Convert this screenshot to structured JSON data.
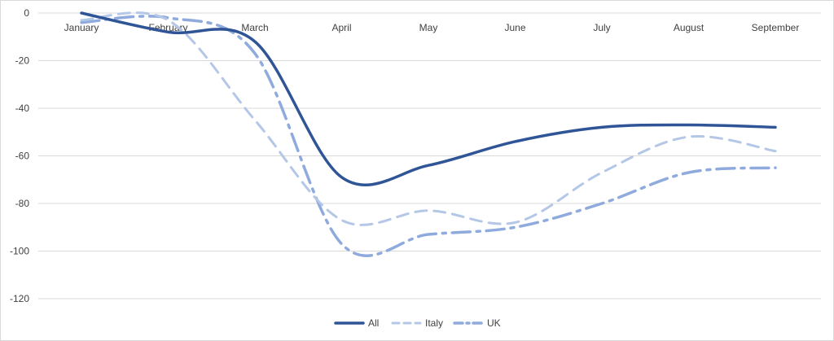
{
  "chart_data": {
    "type": "line",
    "title": "",
    "xlabel": "",
    "ylabel": "",
    "categories": [
      "January",
      "February",
      "March",
      "April",
      "May",
      "June",
      "July",
      "August",
      "September"
    ],
    "ylim": [
      -120,
      0
    ],
    "yticks": [
      0,
      -20,
      -40,
      -60,
      -80,
      -100,
      -120
    ],
    "grid": true,
    "legend_position": "bottom",
    "series": [
      {
        "name": "All",
        "values": [
          0,
          -8,
          -12,
          -69,
          -64,
          -54,
          -48,
          -47,
          -48
        ],
        "color": "#2f5597",
        "style": "solid"
      },
      {
        "name": "Italy",
        "values": [
          -3,
          -3,
          -45,
          -87,
          -83,
          -88,
          -67,
          -52,
          -58
        ],
        "color": "#b4c7e7",
        "style": "dash"
      },
      {
        "name": "UK",
        "values": [
          -4,
          -2,
          -17,
          -97,
          -93,
          -90,
          -80,
          -67,
          -65
        ],
        "color": "#8faadc",
        "style": "dashdot"
      }
    ]
  }
}
